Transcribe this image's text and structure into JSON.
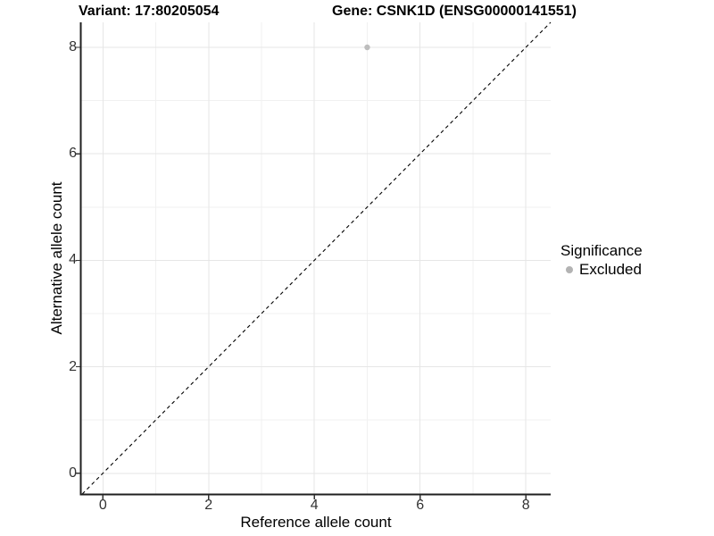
{
  "titles": {
    "variant": "Variant: 17:80205054",
    "gene": "Gene: CSNK1D (ENSG00000141551)"
  },
  "chart_data": {
    "type": "scatter",
    "title": "Variant: 17:80205054   Gene: CSNK1D (ENSG00000141551)",
    "xlabel": "Reference allele count",
    "ylabel": "Alternative allele count",
    "xlim": [
      -0.41,
      8.47
    ],
    "ylim": [
      -0.39,
      8.47
    ],
    "xticks": [
      0,
      2,
      4,
      6,
      8
    ],
    "yticks": [
      0,
      2,
      4,
      6,
      8
    ],
    "xticks_minor": [
      1,
      3,
      5,
      7
    ],
    "yticks_minor": [
      1,
      3,
      5,
      7
    ],
    "grid": true,
    "points": [
      {
        "x": 5,
        "y": 8,
        "series": "Excluded"
      }
    ],
    "reference_line": {
      "type": "identity",
      "slope": 1,
      "intercept": 0,
      "style": "dashed",
      "color": "#000000"
    },
    "legend": {
      "title": "Significance",
      "position": "right",
      "items": [
        {
          "label": "Excluded",
          "color": "#b3b3b3"
        }
      ]
    },
    "colors": {
      "point_excluded": "#bdbdbd",
      "grid_major": "#e6e6e6",
      "grid_minor": "#f1f1f1",
      "axis_line": "#1f1f1f",
      "tick_mark": "#333333",
      "tick_text": "#333333",
      "background": "#ffffff"
    }
  }
}
